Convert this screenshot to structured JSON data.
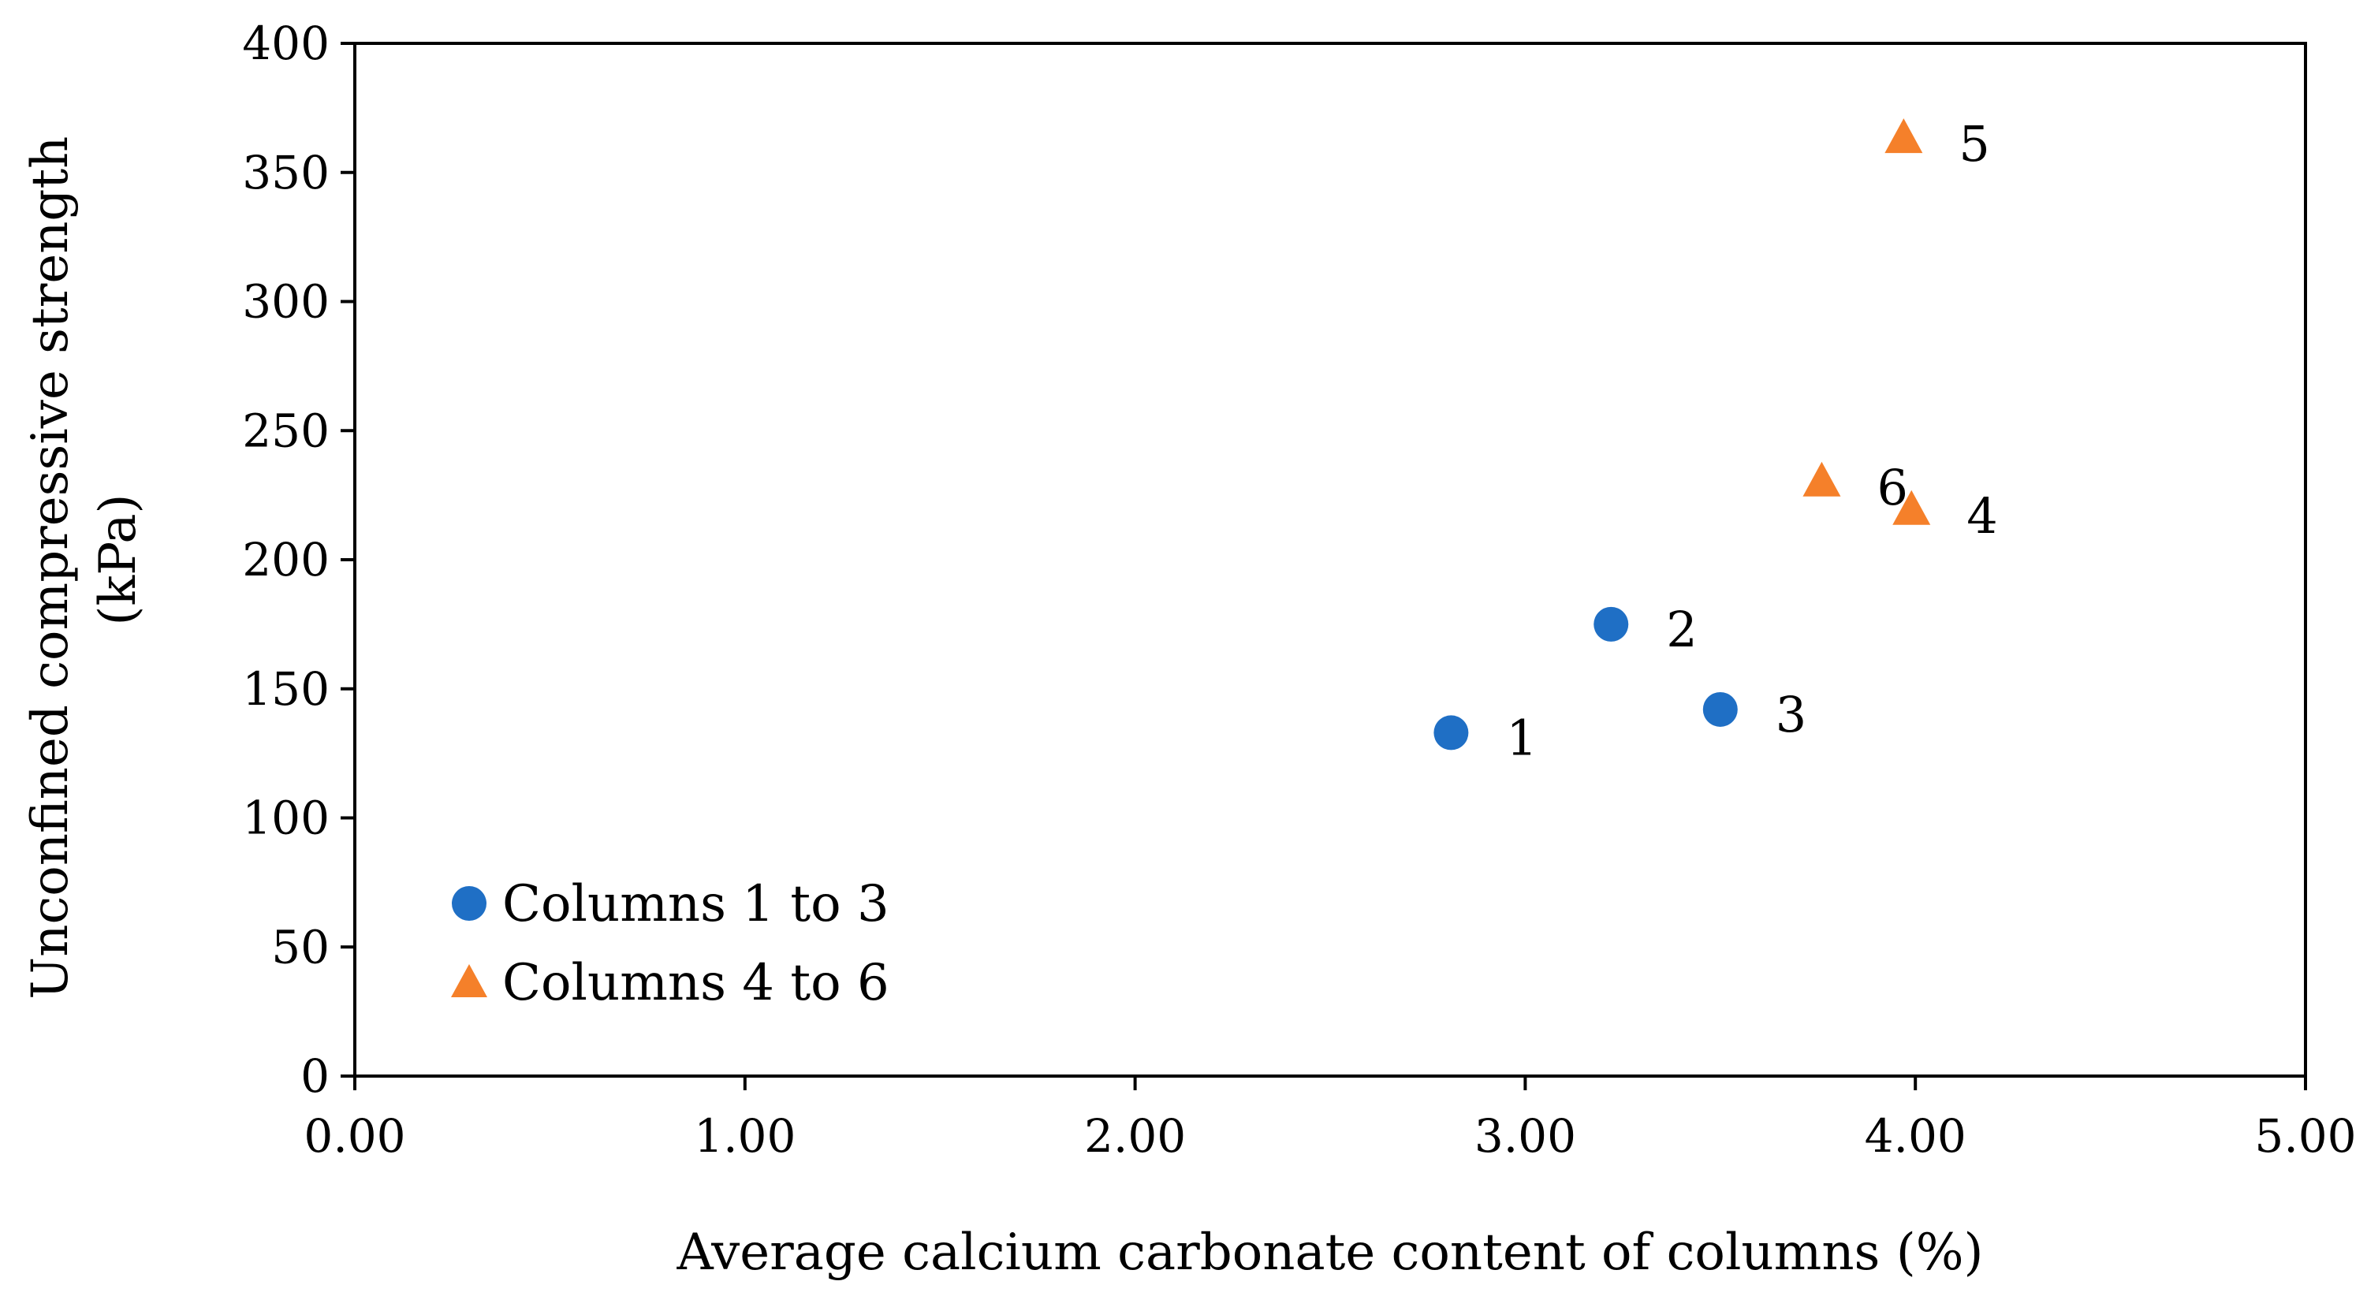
{
  "chart_data": {
    "type": "scatter",
    "title": "",
    "xlabel": "Average calcium carbonate content of columns (%)",
    "ylabel_lines": [
      "Unconfined compressive strength",
      "(kPa)"
    ],
    "xlim": [
      0,
      5
    ],
    "ylim": [
      0,
      400
    ],
    "x_ticks": [
      "0.00",
      "1.00",
      "2.00",
      "3.00",
      "4.00",
      "5.00"
    ],
    "x_tick_values": [
      0,
      1,
      2,
      3,
      4,
      5
    ],
    "y_ticks": [
      "0",
      "50",
      "100",
      "150",
      "200",
      "250",
      "300",
      "350",
      "400"
    ],
    "y_tick_values": [
      0,
      50,
      100,
      150,
      200,
      250,
      300,
      350,
      400
    ],
    "grid": false,
    "legend_position": "bottom-left",
    "series": [
      {
        "name": "Columns 1 to 3",
        "marker": "circle",
        "color": "#1f6fc5",
        "points": [
          {
            "label": "1",
            "x": 2.81,
            "y": 133
          },
          {
            "label": "2",
            "x": 3.22,
            "y": 175
          },
          {
            "label": "3",
            "x": 3.5,
            "y": 142
          }
        ]
      },
      {
        "name": "Columns 4 to 6",
        "marker": "triangle",
        "color": "#f5802a",
        "points": [
          {
            "label": "4",
            "x": 3.99,
            "y": 219
          },
          {
            "label": "5",
            "x": 3.97,
            "y": 363
          },
          {
            "label": "6",
            "x": 3.76,
            "y": 230
          }
        ]
      }
    ]
  }
}
